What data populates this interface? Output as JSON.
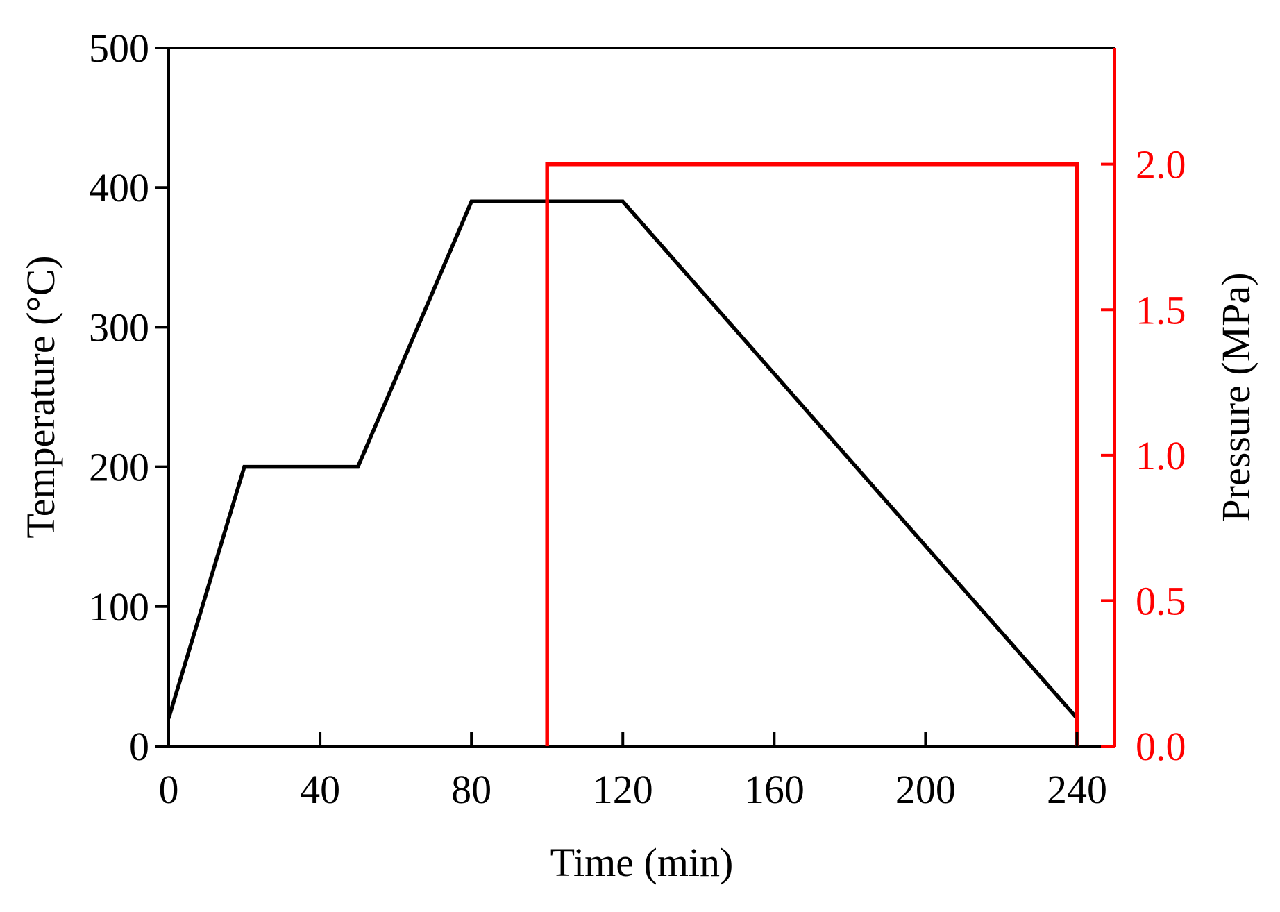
{
  "chart_data": {
    "type": "line",
    "x_axis": {
      "label": "Time (min)",
      "range": [
        0,
        250
      ],
      "ticks": [
        0,
        40,
        80,
        120,
        160,
        200,
        240
      ],
      "tick_labels": [
        "0",
        "40",
        "80",
        "120",
        "160",
        "200",
        "240"
      ]
    },
    "y_left": {
      "label": "Temperature (°C)",
      "range": [
        0,
        500
      ],
      "ticks": [
        0,
        100,
        200,
        300,
        400,
        500
      ],
      "tick_labels": [
        "0",
        "100",
        "200",
        "300",
        "400",
        "500"
      ],
      "color": "#000000"
    },
    "y_right": {
      "label": "Pressure (MPa)",
      "range": [
        0,
        2.4
      ],
      "ticks": [
        0,
        0.5,
        1.0,
        1.5,
        2.0
      ],
      "tick_labels": [
        "0.0",
        "0.5",
        "1.0",
        "1.5",
        "2.0"
      ],
      "color": "#ff0000"
    },
    "series": [
      {
        "axis": "left",
        "color": "#000000",
        "x": [
          0,
          20,
          50,
          80,
          120,
          240
        ],
        "y": [
          20,
          200,
          200,
          390,
          390,
          20
        ]
      },
      {
        "axis": "right",
        "color": "#ff0000",
        "x": [
          100,
          100,
          240,
          240
        ],
        "y": [
          0,
          2.0,
          2.0,
          0
        ]
      }
    ],
    "grid": false,
    "legend": "none"
  }
}
